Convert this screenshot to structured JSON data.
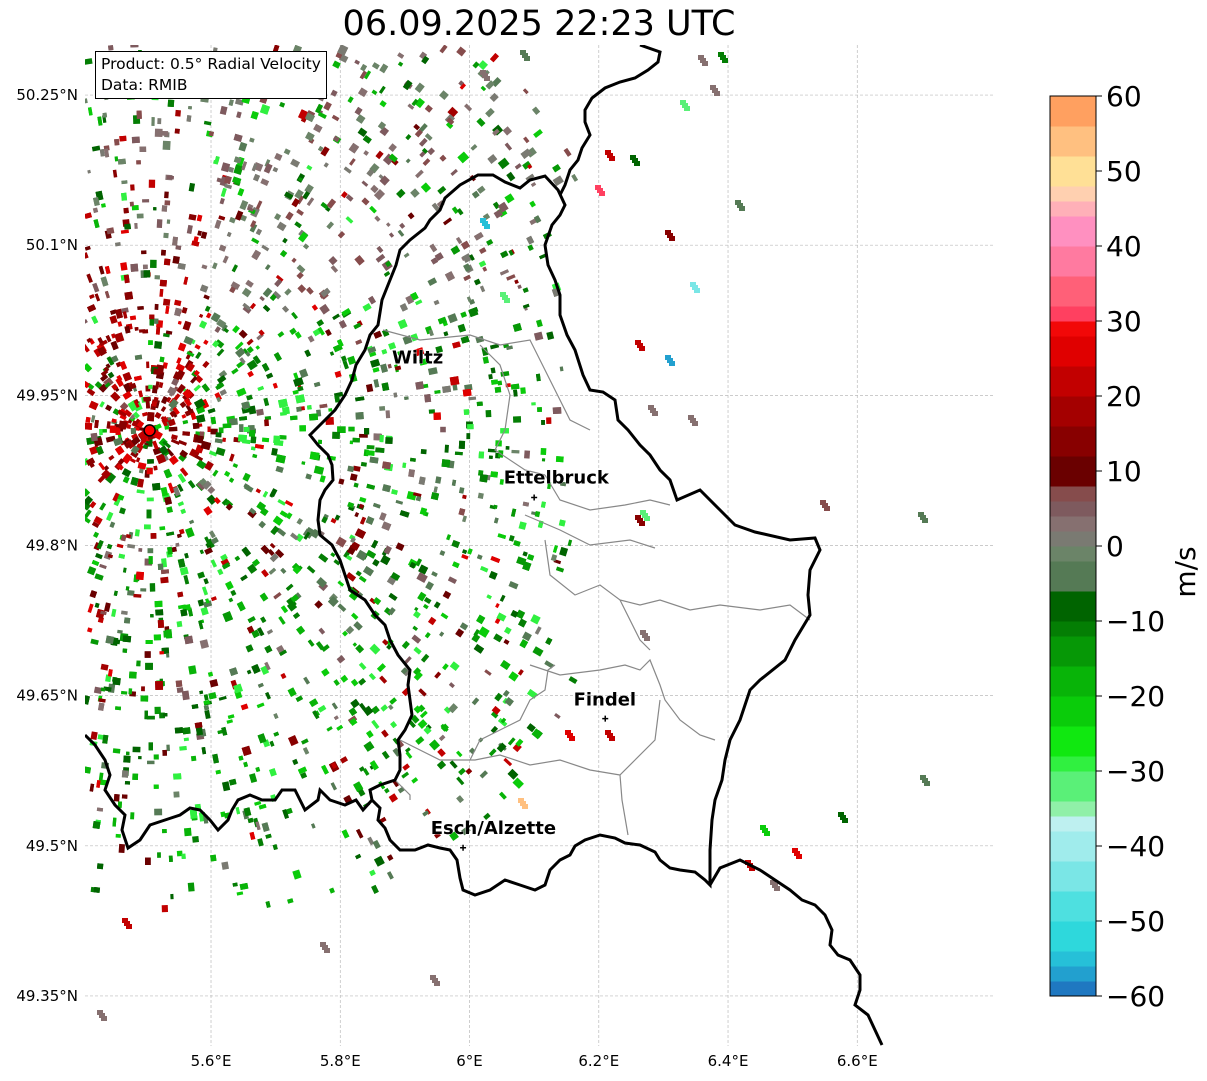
{
  "title": "06.09.2025 22:23 UTC",
  "info_box": {
    "product": "Product: 0.5° Radial Velocity",
    "source": "Data: RMIB"
  },
  "lat_ticks": [
    {
      "label": "50.25°N",
      "value": 50.25
    },
    {
      "label": "50.1°N",
      "value": 50.1
    },
    {
      "label": "49.95°N",
      "value": 49.95
    },
    {
      "label": "49.8°N",
      "value": 49.8
    },
    {
      "label": "49.65°N",
      "value": 49.65
    },
    {
      "label": "49.5°N",
      "value": 49.5
    },
    {
      "label": "49.35°N",
      "value": 49.35
    }
  ],
  "lon_ticks": [
    {
      "label": "5.6°E",
      "value": 5.6
    },
    {
      "label": "5.8°E",
      "value": 5.8
    },
    {
      "label": "6°E",
      "value": 6.0
    },
    {
      "label": "6.2°E",
      "value": 6.2
    },
    {
      "label": "6.4°E",
      "value": 6.4
    },
    {
      "label": "6.6°E",
      "value": 6.6
    }
  ],
  "extent": {
    "lon_min": 5.405,
    "lon_max": 6.81,
    "lat_min": 49.3,
    "lat_max": 50.3
  },
  "radar_site": {
    "lon": 5.505,
    "lat": 49.915
  },
  "cities": [
    {
      "name": "Wiltz",
      "lon": 5.93,
      "lat": 49.968,
      "label_lon": 5.88,
      "label_lat": 49.982,
      "marker": false
    },
    {
      "name": "Ettelbruck",
      "lon": 6.1,
      "lat": 49.848,
      "label_lon": 6.053,
      "label_lat": 49.862,
      "marker": true
    },
    {
      "name": "Findel",
      "lon": 6.21,
      "lat": 49.627,
      "label_lon": 6.161,
      "label_lat": 49.64,
      "marker": true
    },
    {
      "name": "Esch/Alzette",
      "lon": 5.99,
      "lat": 49.498,
      "label_lon": 5.94,
      "label_lat": 49.512,
      "marker": true
    }
  ],
  "colorbar": {
    "label": "m/s",
    "min": -60,
    "max": 60,
    "ticks": [
      {
        "label": "60",
        "value": 60
      },
      {
        "label": "50",
        "value": 50
      },
      {
        "label": "40",
        "value": 40
      },
      {
        "label": "30",
        "value": 30
      },
      {
        "label": "20",
        "value": 20
      },
      {
        "label": "10",
        "value": 10
      },
      {
        "label": "0",
        "value": 0
      },
      {
        "label": "−10",
        "value": -10
      },
      {
        "label": "−20",
        "value": -20
      },
      {
        "label": "−30",
        "value": -30
      },
      {
        "label": "−40",
        "value": -40
      },
      {
        "label": "−50",
        "value": -50
      },
      {
        "label": "−60",
        "value": -60
      }
    ],
    "stops": [
      {
        "from": -60,
        "to": -58,
        "color": "#1f78c1"
      },
      {
        "from": -58,
        "to": -56,
        "color": "#22a0cf"
      },
      {
        "from": -56,
        "to": -54,
        "color": "#26c0d8"
      },
      {
        "from": -54,
        "to": -50,
        "color": "#2ed8dc"
      },
      {
        "from": -50,
        "to": -46,
        "color": "#4ee0e0"
      },
      {
        "from": -46,
        "to": -42,
        "color": "#7ae6e6"
      },
      {
        "from": -42,
        "to": -38,
        "color": "#a0ecec"
      },
      {
        "from": -38,
        "to": -36,
        "color": "#bef0f0"
      },
      {
        "from": -36,
        "to": -34,
        "color": "#90f0a8"
      },
      {
        "from": -34,
        "to": -30,
        "color": "#5af078"
      },
      {
        "from": -30,
        "to": -28,
        "color": "#30f040"
      },
      {
        "from": -28,
        "to": -24,
        "color": "#10e810"
      },
      {
        "from": -24,
        "to": -20,
        "color": "#0acc0a"
      },
      {
        "from": -20,
        "to": -16,
        "color": "#08b408"
      },
      {
        "from": -16,
        "to": -12,
        "color": "#069806"
      },
      {
        "from": -12,
        "to": -10,
        "color": "#047e04"
      },
      {
        "from": -10,
        "to": -6,
        "color": "#006400"
      },
      {
        "from": -6,
        "to": -2,
        "color": "#557a55"
      },
      {
        "from": -2,
        "to": 0,
        "color": "#6b8468"
      },
      {
        "from": 0,
        "to": 2,
        "color": "#7a7a72"
      },
      {
        "from": 2,
        "to": 4,
        "color": "#867070"
      },
      {
        "from": 4,
        "to": 6,
        "color": "#7e5a5e"
      },
      {
        "from": 6,
        "to": 8,
        "color": "#864c4c"
      },
      {
        "from": 8,
        "to": 12,
        "color": "#6a0000"
      },
      {
        "from": 12,
        "to": 16,
        "color": "#880000"
      },
      {
        "from": 16,
        "to": 20,
        "color": "#a40000"
      },
      {
        "from": 20,
        "to": 24,
        "color": "#c20000"
      },
      {
        "from": 24,
        "to": 28,
        "color": "#e00000"
      },
      {
        "from": 28,
        "to": 30,
        "color": "#f20808"
      },
      {
        "from": 30,
        "to": 32,
        "color": "#ff4060"
      },
      {
        "from": 32,
        "to": 36,
        "color": "#ff6078"
      },
      {
        "from": 36,
        "to": 40,
        "color": "#ff7aa0"
      },
      {
        "from": 40,
        "to": 44,
        "color": "#ff90c0"
      },
      {
        "from": 44,
        "to": 46,
        "color": "#ffb0b8"
      },
      {
        "from": 46,
        "to": 48,
        "color": "#ffd0b0"
      },
      {
        "from": 48,
        "to": 52,
        "color": "#ffe096"
      },
      {
        "from": 52,
        "to": 56,
        "color": "#ffc080"
      },
      {
        "from": 56,
        "to": 60,
        "color": "#ffa060"
      }
    ]
  },
  "colors": {
    "inbound_dark": "#006400",
    "inbound_mid": "#08b408",
    "inbound_light": "#30f040",
    "outbound_dark": "#6a0000",
    "outbound_mid": "#c20000",
    "near_zero": "#867070",
    "near_zero_green": "#557a55",
    "radar_marker": "#ff0000",
    "border_national": "#000000",
    "border_canton": "#888888",
    "grid": "#bbbbbb"
  }
}
